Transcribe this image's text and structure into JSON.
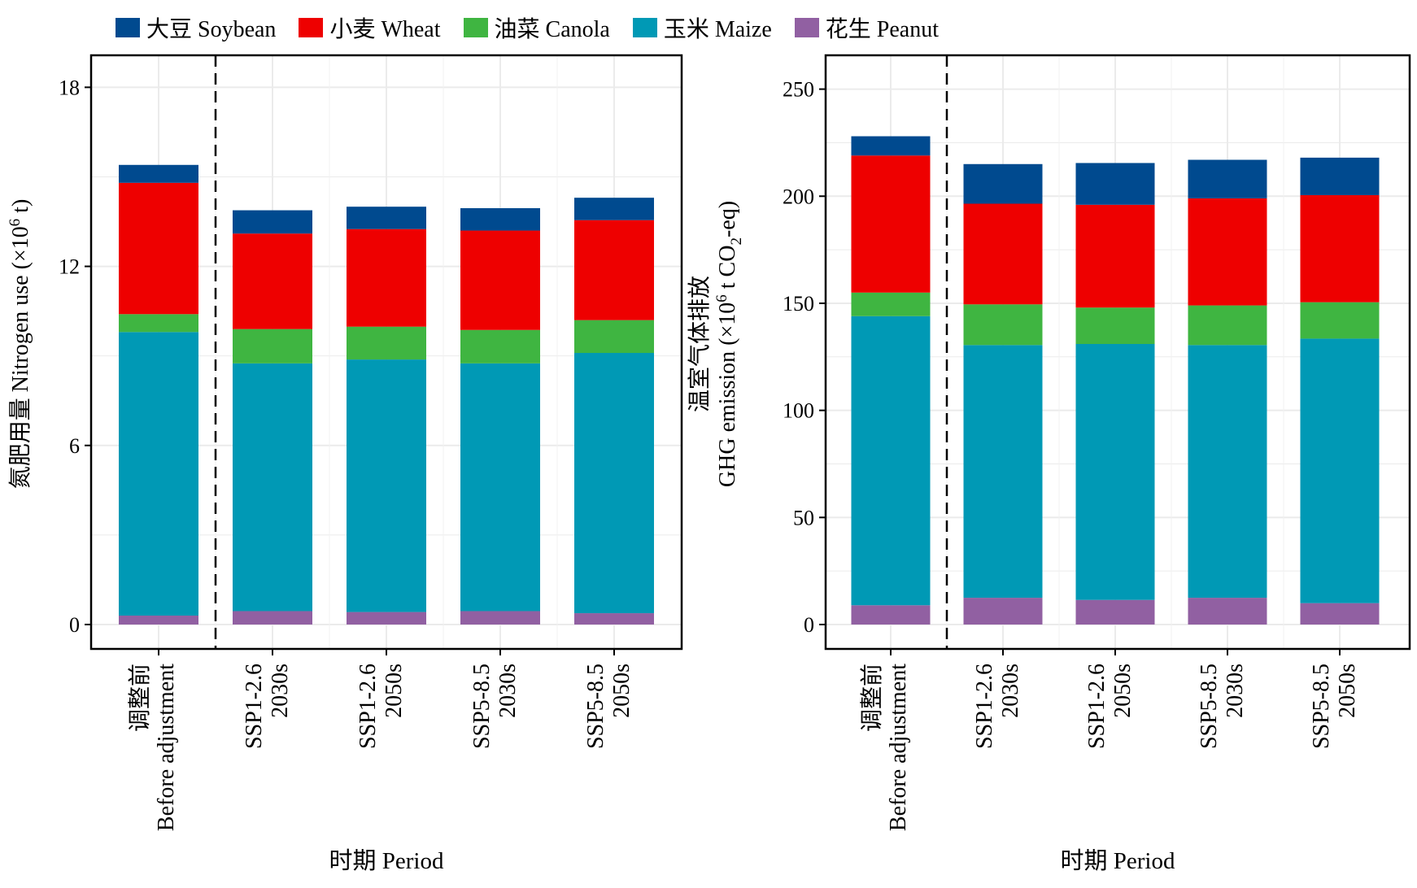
{
  "legend": [
    {
      "label": "大豆 Soybean",
      "color": "#004a8f"
    },
    {
      "label": "小麦 Wheat",
      "color": "#ee0000"
    },
    {
      "label": "油菜 Canola",
      "color": "#3fb541"
    },
    {
      "label": "玉米 Maize",
      "color": "#0099b5"
    },
    {
      "label": "花生 Peanut",
      "color": "#9160a2"
    }
  ],
  "chart_data": [
    {
      "type": "bar",
      "stacked": true,
      "categories": [
        [
          "调整前",
          "Before adjustment"
        ],
        [
          "SSP1-2.6",
          "2030s"
        ],
        [
          "SSP1-2.6",
          "2050s"
        ],
        [
          "SSP5-8.5",
          "2030s"
        ],
        [
          "SSP5-8.5",
          "2050s"
        ]
      ],
      "series": [
        {
          "name": "花生 Peanut",
          "values": [
            0.3,
            0.45,
            0.42,
            0.45,
            0.38
          ]
        },
        {
          "name": "玉米 Maize",
          "values": [
            9.5,
            8.3,
            8.46,
            8.3,
            8.72
          ]
        },
        {
          "name": "油菜 Canola",
          "values": [
            0.6,
            1.15,
            1.1,
            1.12,
            1.1
          ]
        },
        {
          "name": "小麦 Wheat",
          "values": [
            4.4,
            3.2,
            3.27,
            3.33,
            3.35
          ]
        },
        {
          "name": "大豆 Soybean",
          "values": [
            0.6,
            0.78,
            0.75,
            0.75,
            0.75
          ]
        }
      ],
      "ylabel_cn": "氮肥用量",
      "ylabel_en": "Nitrogen use (×10",
      "ylabel_sup": "6",
      "ylabel_tail": " t)",
      "xlabel": "时期 Period",
      "yticks": [
        "0",
        "6",
        "12",
        "18"
      ],
      "ylim": [
        0,
        18.8
      ],
      "grid": true
    },
    {
      "type": "bar",
      "stacked": true,
      "categories": [
        [
          "调整前",
          "Before adjustment"
        ],
        [
          "SSP1-2.6",
          "2030s"
        ],
        [
          "SSP1-2.6",
          "2050s"
        ],
        [
          "SSP5-8.5",
          "2030s"
        ],
        [
          "SSP5-8.5",
          "2050s"
        ]
      ],
      "series": [
        {
          "name": "花生 Peanut",
          "values": [
            9,
            12.5,
            11.5,
            12.5,
            10
          ]
        },
        {
          "name": "玉米 Maize",
          "values": [
            135,
            118,
            119.5,
            118,
            123.5
          ]
        },
        {
          "name": "油菜 Canola",
          "values": [
            11,
            19,
            17,
            18.5,
            17
          ]
        },
        {
          "name": "小麦 Wheat",
          "values": [
            64,
            47,
            48,
            50,
            50
          ]
        },
        {
          "name": "大豆 Soybean",
          "values": [
            9,
            18.5,
            19.5,
            18,
            17.5
          ]
        }
      ],
      "ylabel_cn": "温室气体排放",
      "ylabel_en": "GHG emission (×10",
      "ylabel_sup": "6",
      "ylabel_mid": " t CO",
      "ylabel_sub": "2",
      "ylabel_tail": "-eq)",
      "xlabel": "时期 Period",
      "yticks": [
        "0",
        "50",
        "100",
        "150",
        "200",
        "250"
      ],
      "ylim": [
        0,
        262
      ],
      "grid": true
    }
  ]
}
